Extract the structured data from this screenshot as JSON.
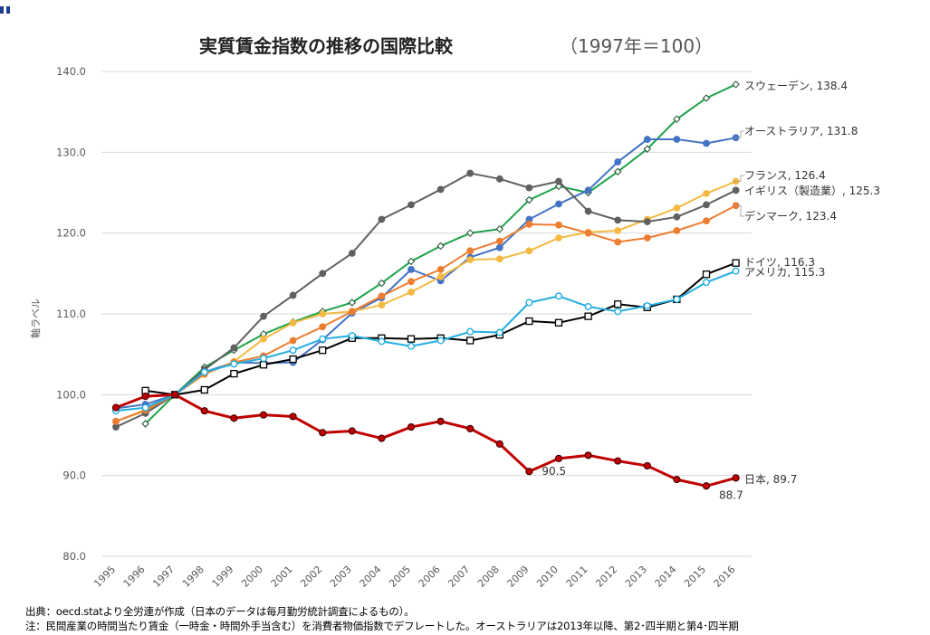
{
  "chart_data": {
    "type": "line",
    "title": "実質賃金指数の推移の国際比較（1997年＝100）",
    "title_main": "実質賃金指数の推移の国際比較",
    "title_sub": "（1997年＝100）",
    "xlabel": "",
    "ylabel": "軸ラベル",
    "ylim": [
      80,
      140
    ],
    "yticks": [
      "80.0",
      "90.0",
      "100.0",
      "110.0",
      "120.0",
      "130.0",
      "140.0"
    ],
    "categories": [
      "1995",
      "1996",
      "1997",
      "1998",
      "1999",
      "2000",
      "2001",
      "2002",
      "2003",
      "2004",
      "2005",
      "2006",
      "2007",
      "2008",
      "2009",
      "2010",
      "2011",
      "2012",
      "2013",
      "2014",
      "2015",
      "2016"
    ],
    "grid": "horizontal",
    "series": [
      {
        "name": "スウェーデン",
        "end_label": "スウェーデン, 138.4",
        "color": "#1fa34a",
        "marker": "diamond",
        "values": [
          null,
          96.4,
          100.0,
          103.4,
          105.5,
          107.5,
          109.0,
          110.3,
          111.4,
          113.8,
          116.5,
          118.4,
          120.0,
          120.5,
          124.1,
          125.8,
          125.0,
          127.6,
          130.4,
          134.1,
          136.7,
          138.4
        ]
      },
      {
        "name": "オーストラリア",
        "end_label": "オーストラリア, 131.8",
        "color": "#4472c4",
        "marker": "circle",
        "values": [
          98.3,
          98.8,
          100.0,
          102.8,
          104.0,
          103.9,
          104.0,
          106.8,
          110.1,
          112.0,
          115.5,
          114.1,
          117.0,
          118.2,
          121.7,
          123.6,
          125.3,
          128.8,
          131.6,
          131.6,
          131.1,
          131.8
        ]
      },
      {
        "name": "フランス",
        "end_label": "フランス, 126.4",
        "color": "#f4b942",
        "marker": "circle",
        "values": [
          96.7,
          98.0,
          100.0,
          102.5,
          104.1,
          106.9,
          108.9,
          110.0,
          110.3,
          111.1,
          112.7,
          114.6,
          116.7,
          116.8,
          117.8,
          119.4,
          120.1,
          120.3,
          121.7,
          123.1,
          124.9,
          126.4
        ]
      },
      {
        "name": "イギリス（製造業）",
        "end_label": "イギリス（製造業）, 125.3",
        "color": "#606060",
        "marker": "circle",
        "values": [
          96.0,
          97.7,
          100.0,
          103.1,
          105.8,
          109.7,
          112.3,
          115.0,
          117.5,
          121.7,
          123.5,
          125.4,
          127.4,
          126.7,
          125.6,
          126.4,
          122.7,
          121.6,
          121.4,
          122.0,
          123.5,
          125.3
        ]
      },
      {
        "name": "デンマーク",
        "end_label": "デンマーク, 123.4",
        "color": "#ed7d31",
        "marker": "circle",
        "values": [
          96.7,
          98.1,
          100.0,
          102.6,
          104.0,
          104.8,
          106.7,
          108.4,
          110.3,
          112.2,
          114.0,
          115.5,
          117.8,
          119.0,
          121.1,
          121.0,
          120.0,
          118.9,
          119.4,
          120.3,
          121.5,
          123.4
        ]
      },
      {
        "name": "ドイツ",
        "end_label": "ドイツ, 116.3",
        "color": "#000000",
        "marker": "square",
        "values": [
          null,
          100.5,
          100.0,
          100.6,
          102.6,
          103.7,
          104.4,
          105.5,
          107.0,
          107.0,
          106.9,
          107.0,
          106.7,
          107.4,
          109.1,
          108.9,
          109.7,
          111.2,
          110.8,
          111.8,
          114.9,
          116.3
        ]
      },
      {
        "name": "アメリカ",
        "end_label": "アメリカ, 115.3",
        "color": "#21aee0",
        "marker": "open-circle",
        "values": [
          98.0,
          98.4,
          100.0,
          102.8,
          103.8,
          104.5,
          105.5,
          106.9,
          107.3,
          106.6,
          106.0,
          106.7,
          107.8,
          107.7,
          111.4,
          112.2,
          110.9,
          110.3,
          111.0,
          111.8,
          113.9,
          115.3
        ]
      },
      {
        "name": "日本",
        "end_label": "日本, 89.7",
        "color": "#c00000",
        "marker": "circle",
        "values": [
          98.4,
          99.8,
          100.0,
          98.0,
          97.1,
          97.5,
          97.3,
          95.3,
          95.5,
          94.6,
          96.0,
          96.7,
          95.8,
          93.9,
          90.5,
          92.1,
          92.5,
          91.8,
          91.2,
          89.5,
          88.7,
          89.7
        ]
      }
    ],
    "annotations": [
      {
        "text": "90.5",
        "year": "2009",
        "value": 90.5
      },
      {
        "text": "88.7",
        "year": "2015",
        "value": 88.7
      }
    ]
  },
  "notes": {
    "source": "出典：oecd.statより全労連が作成（日本のデータは毎月勤労統計調査によるもの）。",
    "note": "注：民間産業の時間当たり賃金（一時金・時間外手当含む）を消費者物価指数でデフレートした。オーストラリアは2013年以降、第2･四半期と第4･四半期"
  },
  "colors": {
    "grid": "#d9d9d9",
    "axis_text": "#595959",
    "title": "#222222",
    "label": "#333333"
  }
}
